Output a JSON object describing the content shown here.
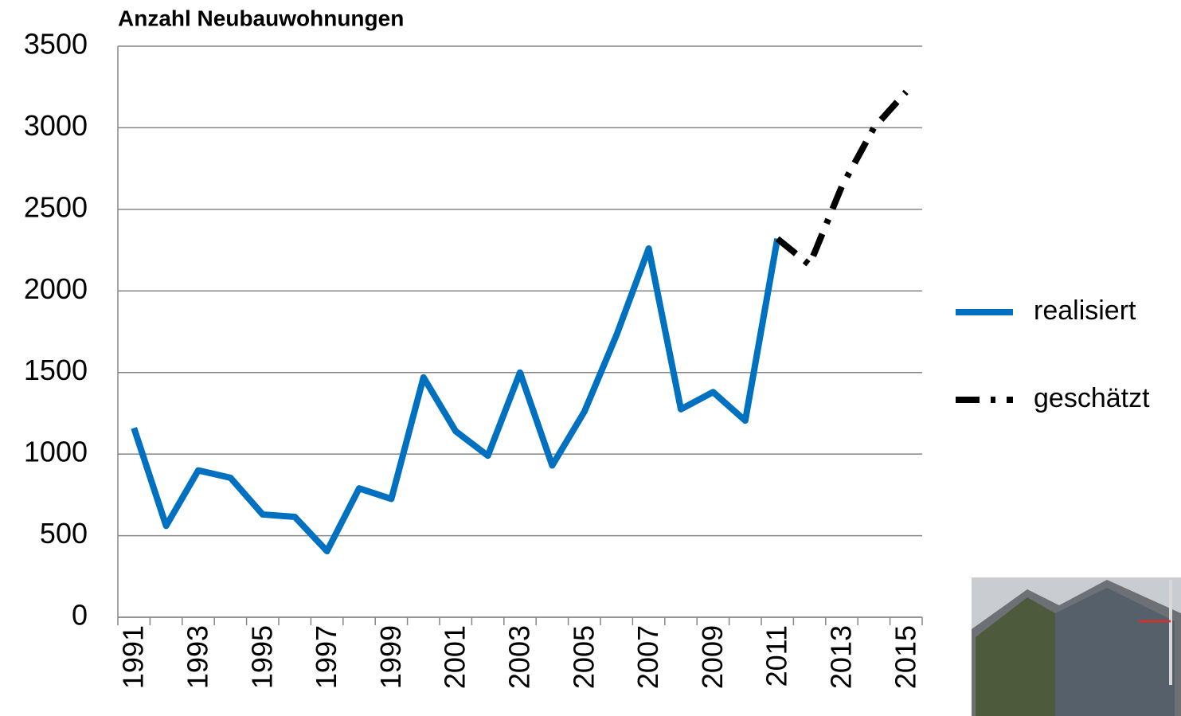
{
  "chart_data": {
    "type": "line",
    "title": "Anzahl Neubauwohnungen",
    "categories": [
      "1991",
      null,
      "1993",
      null,
      "1995",
      null,
      "1997",
      null,
      "1999",
      null,
      "2001",
      null,
      "2003",
      null,
      "2005",
      null,
      "2007",
      null,
      "2009",
      null,
      "2011",
      null,
      "2013",
      null,
      "2015"
    ],
    "series": [
      {
        "name": "realisiert",
        "color": "#0070c0",
        "dash": "solid",
        "values": [
          1160,
          560,
          900,
          855,
          630,
          615,
          405,
          790,
          725,
          1470,
          1140,
          990,
          1500,
          930,
          1260,
          1730,
          2260,
          1275,
          1380,
          1205,
          2320,
          null,
          null,
          null,
          null
        ]
      },
      {
        "name": "geschätzt",
        "color": "#000000",
        "dash": "dash-dot",
        "values": [
          null,
          null,
          null,
          null,
          null,
          null,
          null,
          null,
          null,
          null,
          null,
          null,
          null,
          null,
          null,
          null,
          null,
          null,
          null,
          null,
          2320,
          2160,
          2640,
          3000,
          3220
        ]
      }
    ],
    "ylim": [
      0,
      3500
    ],
    "yticks": [
      0,
      500,
      1000,
      1500,
      2000,
      2500,
      3000,
      3500
    ],
    "grid": true,
    "legend": "right"
  }
}
